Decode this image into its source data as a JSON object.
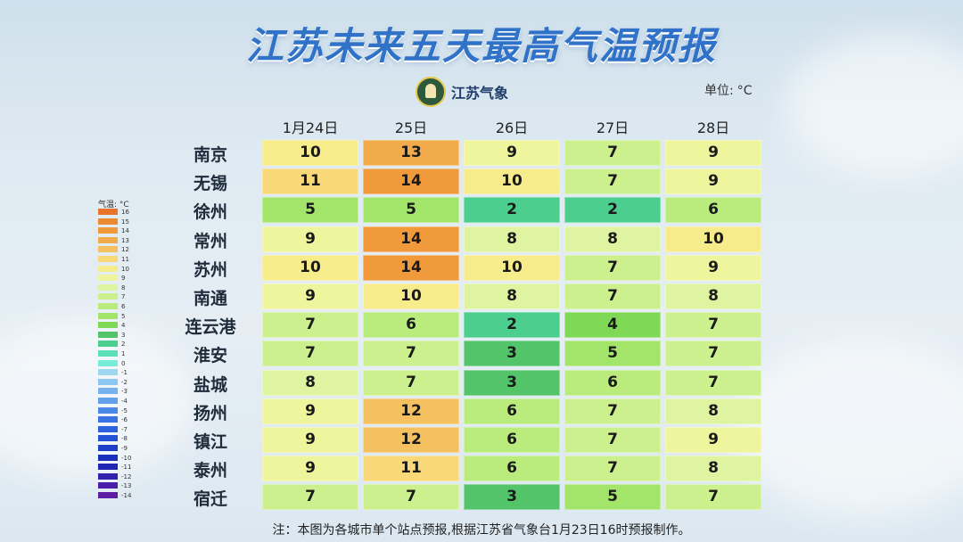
{
  "title": "江苏未来五天最高气温预报",
  "logo_text": "江苏气象",
  "unit_label": "单位:",
  "unit_value": "°C",
  "note": "注：本图为各城市单个站点预报,根据江苏省气象台1月23日16时预报制作。",
  "legend": {
    "title": "气温: °C",
    "labels": [
      "16",
      "15",
      "14",
      "13",
      "12",
      "11",
      "10",
      "9",
      "8",
      "7",
      "6",
      "5",
      "4",
      "3",
      "2",
      "1",
      "0",
      "-1",
      "-2",
      "-3",
      "-4",
      "-5",
      "-6",
      "-7",
      "-8",
      "-9",
      "-10",
      "-11",
      "-12",
      "-13",
      "-14"
    ],
    "colors": [
      "#e8742c",
      "#ec8a34",
      "#f09a3c",
      "#f2ab4a",
      "#f5c060",
      "#f8d878",
      "#f7ec8c",
      "#eef59c",
      "#dff4a0",
      "#cdf08e",
      "#b9ec7c",
      "#a3e56a",
      "#7fd956",
      "#54c46a",
      "#4ccf8e",
      "#5ee0b6",
      "#78ecd8",
      "#9ed8f0",
      "#8cc6f2",
      "#78b2ee",
      "#62a0ea",
      "#4a8ae6",
      "#3a74e2",
      "#2c62dc",
      "#2452d4",
      "#1e40c8",
      "#1a30bc",
      "#2026b4",
      "#3420ae",
      "#4a1ea8",
      "#5e1ca2"
    ]
  },
  "chart_data": {
    "type": "heatmap",
    "title": "江苏未来五天最高气温预报",
    "unit": "°C",
    "columns": [
      "1月24日",
      "25日",
      "26日",
      "27日",
      "28日"
    ],
    "rows": [
      {
        "city": "南京",
        "values": [
          10,
          13,
          9,
          7,
          9
        ]
      },
      {
        "city": "无锡",
        "values": [
          11,
          14,
          10,
          7,
          9
        ]
      },
      {
        "city": "徐州",
        "values": [
          5,
          5,
          2,
          2,
          6
        ]
      },
      {
        "city": "常州",
        "values": [
          9,
          14,
          8,
          8,
          10
        ]
      },
      {
        "city": "苏州",
        "values": [
          10,
          14,
          10,
          7,
          9
        ]
      },
      {
        "city": "南通",
        "values": [
          9,
          10,
          8,
          7,
          8
        ]
      },
      {
        "city": "连云港",
        "values": [
          7,
          6,
          2,
          4,
          7
        ]
      },
      {
        "city": "淮安",
        "values": [
          7,
          7,
          3,
          5,
          7
        ]
      },
      {
        "city": "盐城",
        "values": [
          8,
          7,
          3,
          6,
          7
        ]
      },
      {
        "city": "扬州",
        "values": [
          9,
          12,
          6,
          7,
          8
        ]
      },
      {
        "city": "镇江",
        "values": [
          9,
          12,
          6,
          7,
          9
        ]
      },
      {
        "city": "泰州",
        "values": [
          9,
          11,
          6,
          7,
          8
        ]
      },
      {
        "city": "宿迁",
        "values": [
          7,
          7,
          3,
          5,
          7
        ]
      }
    ]
  }
}
